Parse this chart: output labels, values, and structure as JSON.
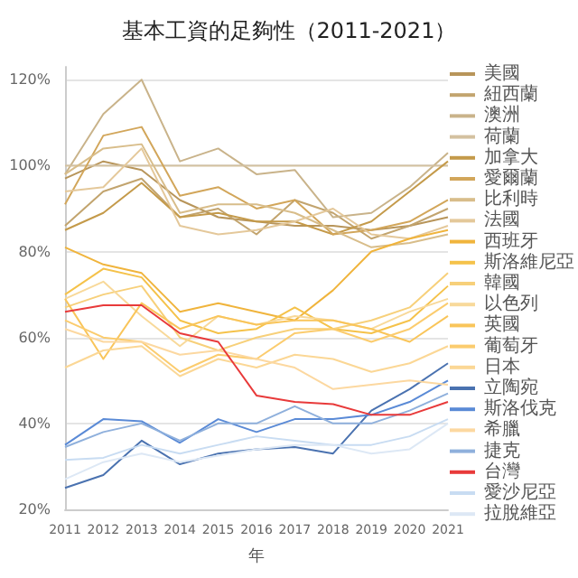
{
  "chart_data": {
    "type": "line",
    "title": "基本工資的足夠性（2011-2021）",
    "xlabel": "年",
    "categories": [
      "2011",
      "2012",
      "2013",
      "2014",
      "2015",
      "2016",
      "2017",
      "2018",
      "2019",
      "2020",
      "2021"
    ],
    "ylim": [
      20,
      123
    ],
    "yticks": [
      {
        "value": 20,
        "label": "20%"
      },
      {
        "value": 40,
        "label": "40%"
      },
      {
        "value": 60,
        "label": "60%"
      },
      {
        "value": 80,
        "label": "80%"
      },
      {
        "value": 100,
        "label": "100%"
      },
      {
        "value": 120,
        "label": "120%"
      }
    ],
    "grid": "y",
    "legend": "right",
    "series": [
      {
        "name": "美國",
        "color": "#b8955a",
        "values": [
          97,
          101,
          99,
          92,
          88,
          87,
          86,
          86,
          85,
          86,
          88
        ]
      },
      {
        "name": "紐西蘭",
        "color": "#c2a46e",
        "values": [
          86,
          94,
          97,
          88,
          90,
          84,
          92,
          89,
          83,
          86,
          90
        ]
      },
      {
        "name": "澳洲",
        "color": "#c9b38a",
        "values": [
          98,
          112,
          120,
          101,
          104,
          98,
          99,
          88,
          89,
          95,
          103
        ]
      },
      {
        "name": "荷蘭",
        "color": "#d4c1a0",
        "values": [
          100,
          100,
          100,
          100,
          100,
          100,
          100,
          100,
          100,
          100,
          100
        ]
      },
      {
        "name": "加拿大",
        "color": "#c49a4a",
        "values": [
          85,
          89,
          96,
          88,
          89,
          87,
          87,
          84,
          87,
          94,
          101
        ]
      },
      {
        "name": "愛爾蘭",
        "color": "#d2a65a",
        "values": [
          91,
          107,
          109,
          93,
          95,
          90,
          92,
          84,
          85,
          87,
          92
        ]
      },
      {
        "name": "比利時",
        "color": "#d8bd8a",
        "values": [
          98,
          104,
          105,
          89,
          91,
          91,
          89,
          85,
          81,
          82,
          84
        ]
      },
      {
        "name": "法國",
        "color": "#e4c89a",
        "values": [
          94,
          95,
          104,
          86,
          84,
          85,
          87,
          90,
          84,
          83,
          86
        ]
      },
      {
        "name": "西班牙",
        "color": "#f0b43c",
        "values": [
          81,
          77,
          75,
          66,
          68,
          66,
          64,
          71,
          80,
          83,
          85
        ]
      },
      {
        "name": "斯洛維尼亞",
        "color": "#f5c24a",
        "values": [
          70,
          76,
          74,
          64,
          61,
          62,
          67,
          62,
          61,
          64,
          72
        ]
      },
      {
        "name": "韓國",
        "color": "#f7d07a",
        "values": [
          67,
          70,
          72,
          60,
          57,
          60,
          62,
          62,
          64,
          67,
          75
        ]
      },
      {
        "name": "以色列",
        "color": "#f8d99a",
        "values": [
          69,
          73,
          65,
          58,
          65,
          63,
          65,
          64,
          62,
          66,
          69
        ]
      },
      {
        "name": "英國",
        "color": "#f9c55a",
        "values": [
          69,
          55,
          68,
          62,
          65,
          63,
          64,
          64,
          62,
          59,
          65
        ]
      },
      {
        "name": "葡萄牙",
        "color": "#fbcc6e",
        "values": [
          64,
          60,
          59,
          52,
          56,
          55,
          61,
          62,
          59,
          62,
          68
        ]
      },
      {
        "name": "日本",
        "color": "#fbd795",
        "values": [
          53,
          57,
          58,
          51,
          55,
          53,
          56,
          55,
          52,
          54,
          58
        ]
      },
      {
        "name": "立陶宛",
        "color": "#4a72b0",
        "values": [
          25,
          28,
          36,
          30.5,
          33,
          34,
          34.5,
          33,
          43,
          48,
          54
        ]
      },
      {
        "name": "斯洛伐克",
        "color": "#5a8ad6",
        "values": [
          35,
          41,
          40.5,
          35.5,
          41,
          38,
          41,
          41,
          42,
          45,
          50
        ]
      },
      {
        "name": "希臘",
        "color": "#fcd8a0",
        "values": [
          62,
          59,
          59,
          56,
          57,
          55,
          53,
          48,
          49,
          50,
          49
        ]
      },
      {
        "name": "捷克",
        "color": "#8fb0dc",
        "values": [
          34.5,
          38,
          40,
          36,
          40,
          40,
          44,
          40,
          40,
          43,
          47
        ]
      },
      {
        "name": "台灣",
        "color": "#e83a3a",
        "values": [
          66,
          67.5,
          67.5,
          61,
          59,
          46.5,
          45,
          44.5,
          42,
          42,
          45
        ]
      },
      {
        "name": "愛沙尼亞",
        "color": "#c8dcf2",
        "values": [
          31.5,
          32,
          35,
          33,
          35,
          37,
          36,
          35,
          35,
          37,
          41
        ]
      },
      {
        "name": "拉脫維亞",
        "color": "#dde8f5",
        "values": [
          27,
          31,
          33,
          31,
          32.5,
          34,
          35,
          35,
          33,
          34,
          40
        ]
      }
    ]
  }
}
